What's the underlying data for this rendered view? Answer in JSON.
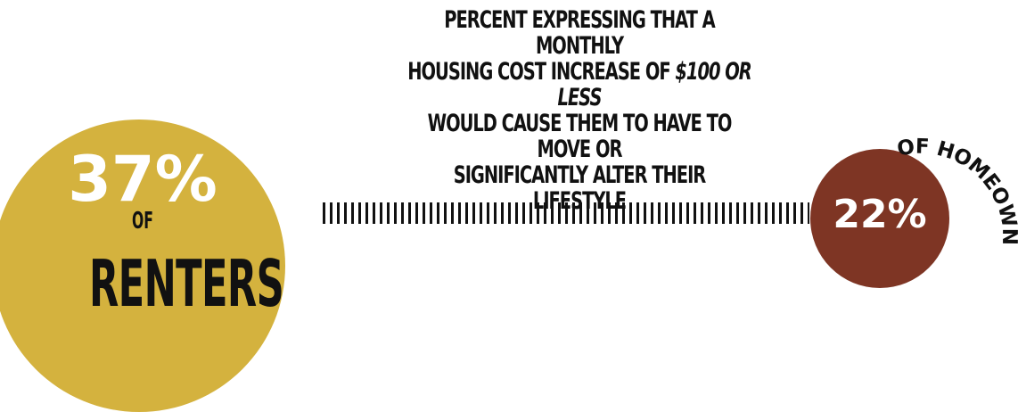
{
  "headline": {
    "line1": "PERCENT EXPRESSING THAT A MONTHLY",
    "line2_prefix": "HOUSING COST INCREASE OF ",
    "line2_emph": "$100 OR LESS",
    "line3": "WOULD CAUSE THEM TO HAVE TO MOVE OR",
    "line4": "SIGNIFICANTLY ALTER THEIR LIFESTYLE"
  },
  "renters": {
    "value_label": "37%",
    "of_label": "OF",
    "group_label": "RENTERS"
  },
  "homeowners": {
    "value_label": "22%",
    "group_label": "OF HOMEOWNERS"
  },
  "colors": {
    "renters": "#d4b23e",
    "homeowners": "#7e3524",
    "text": "#111111"
  },
  "chart_data": {
    "type": "bubble",
    "title": "PERCENT EXPRESSING THAT A MONTHLY HOUSING COST INCREASE OF $100 OR LESS WOULD CAUSE THEM TO HAVE TO MOVE OR SIGNIFICANTLY ALTER THEIR LIFESTYLE",
    "categories": [
      "Renters",
      "Homeowners"
    ],
    "values": [
      37,
      22
    ],
    "unit": "%"
  }
}
